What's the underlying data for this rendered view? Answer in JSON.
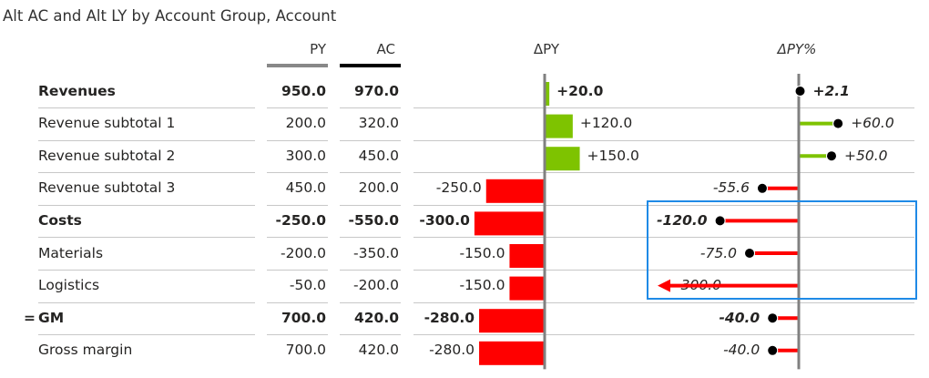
{
  "visual": {
    "title": "Alt AC and Alt LY by Account Group, Account"
  },
  "columns": {
    "py": "PY",
    "ac": "AC",
    "delta": "ΔPY",
    "delta_pct": "ΔPY%"
  },
  "colors": {
    "positive": "#7ec300",
    "negative": "#ff0000",
    "py_header_bar": "#888888",
    "ac_header_bar": "#000000",
    "axis": "#808080",
    "selection": "#1f8ae6"
  },
  "chart_data": {
    "type": "table",
    "rows": [
      {
        "label": "Revenues",
        "bold": true,
        "prefix": "",
        "py": "950.0",
        "ac": "970.0",
        "delta": 20.0,
        "delta_label": "+20.0",
        "delta_pct": 2.1,
        "delta_pct_label": "+2.1"
      },
      {
        "label": "Revenue subtotal 1",
        "bold": false,
        "prefix": "",
        "py": "200.0",
        "ac": "320.0",
        "delta": 120.0,
        "delta_label": "+120.0",
        "delta_pct": 60.0,
        "delta_pct_label": "+60.0"
      },
      {
        "label": "Revenue subtotal 2",
        "bold": false,
        "prefix": "",
        "py": "300.0",
        "ac": "450.0",
        "delta": 150.0,
        "delta_label": "+150.0",
        "delta_pct": 50.0,
        "delta_pct_label": "+50.0"
      },
      {
        "label": "Revenue subtotal 3",
        "bold": false,
        "prefix": "",
        "py": "450.0",
        "ac": "200.0",
        "delta": -250.0,
        "delta_label": "-250.0",
        "delta_pct": -55.6,
        "delta_pct_label": "-55.6"
      },
      {
        "label": "Costs",
        "bold": true,
        "prefix": "",
        "py": "-250.0",
        "ac": "-550.0",
        "delta": -300.0,
        "delta_label": "-300.0",
        "delta_pct": -120.0,
        "delta_pct_label": "-120.0"
      },
      {
        "label": "Materials",
        "bold": false,
        "prefix": "",
        "py": "-200.0",
        "ac": "-350.0",
        "delta": -150.0,
        "delta_label": "-150.0",
        "delta_pct": -75.0,
        "delta_pct_label": "-75.0"
      },
      {
        "label": "Logistics",
        "bold": false,
        "prefix": "",
        "py": "-50.0",
        "ac": "-200.0",
        "delta": -150.0,
        "delta_label": "-150.0",
        "delta_pct": -300.0,
        "delta_pct_label": "-300.0",
        "pct_clipped": true
      },
      {
        "label": "GM",
        "bold": true,
        "prefix": "=",
        "py": "700.0",
        "ac": "420.0",
        "delta": -280.0,
        "delta_label": "-280.0",
        "delta_pct": -40.0,
        "delta_pct_label": "-40.0"
      },
      {
        "label": "Gross margin",
        "bold": false,
        "prefix": "",
        "py": "700.0",
        "ac": "420.0",
        "delta": -280.0,
        "delta_label": "-280.0",
        "delta_pct": -40.0,
        "delta_pct_label": "-40.0"
      }
    ]
  }
}
